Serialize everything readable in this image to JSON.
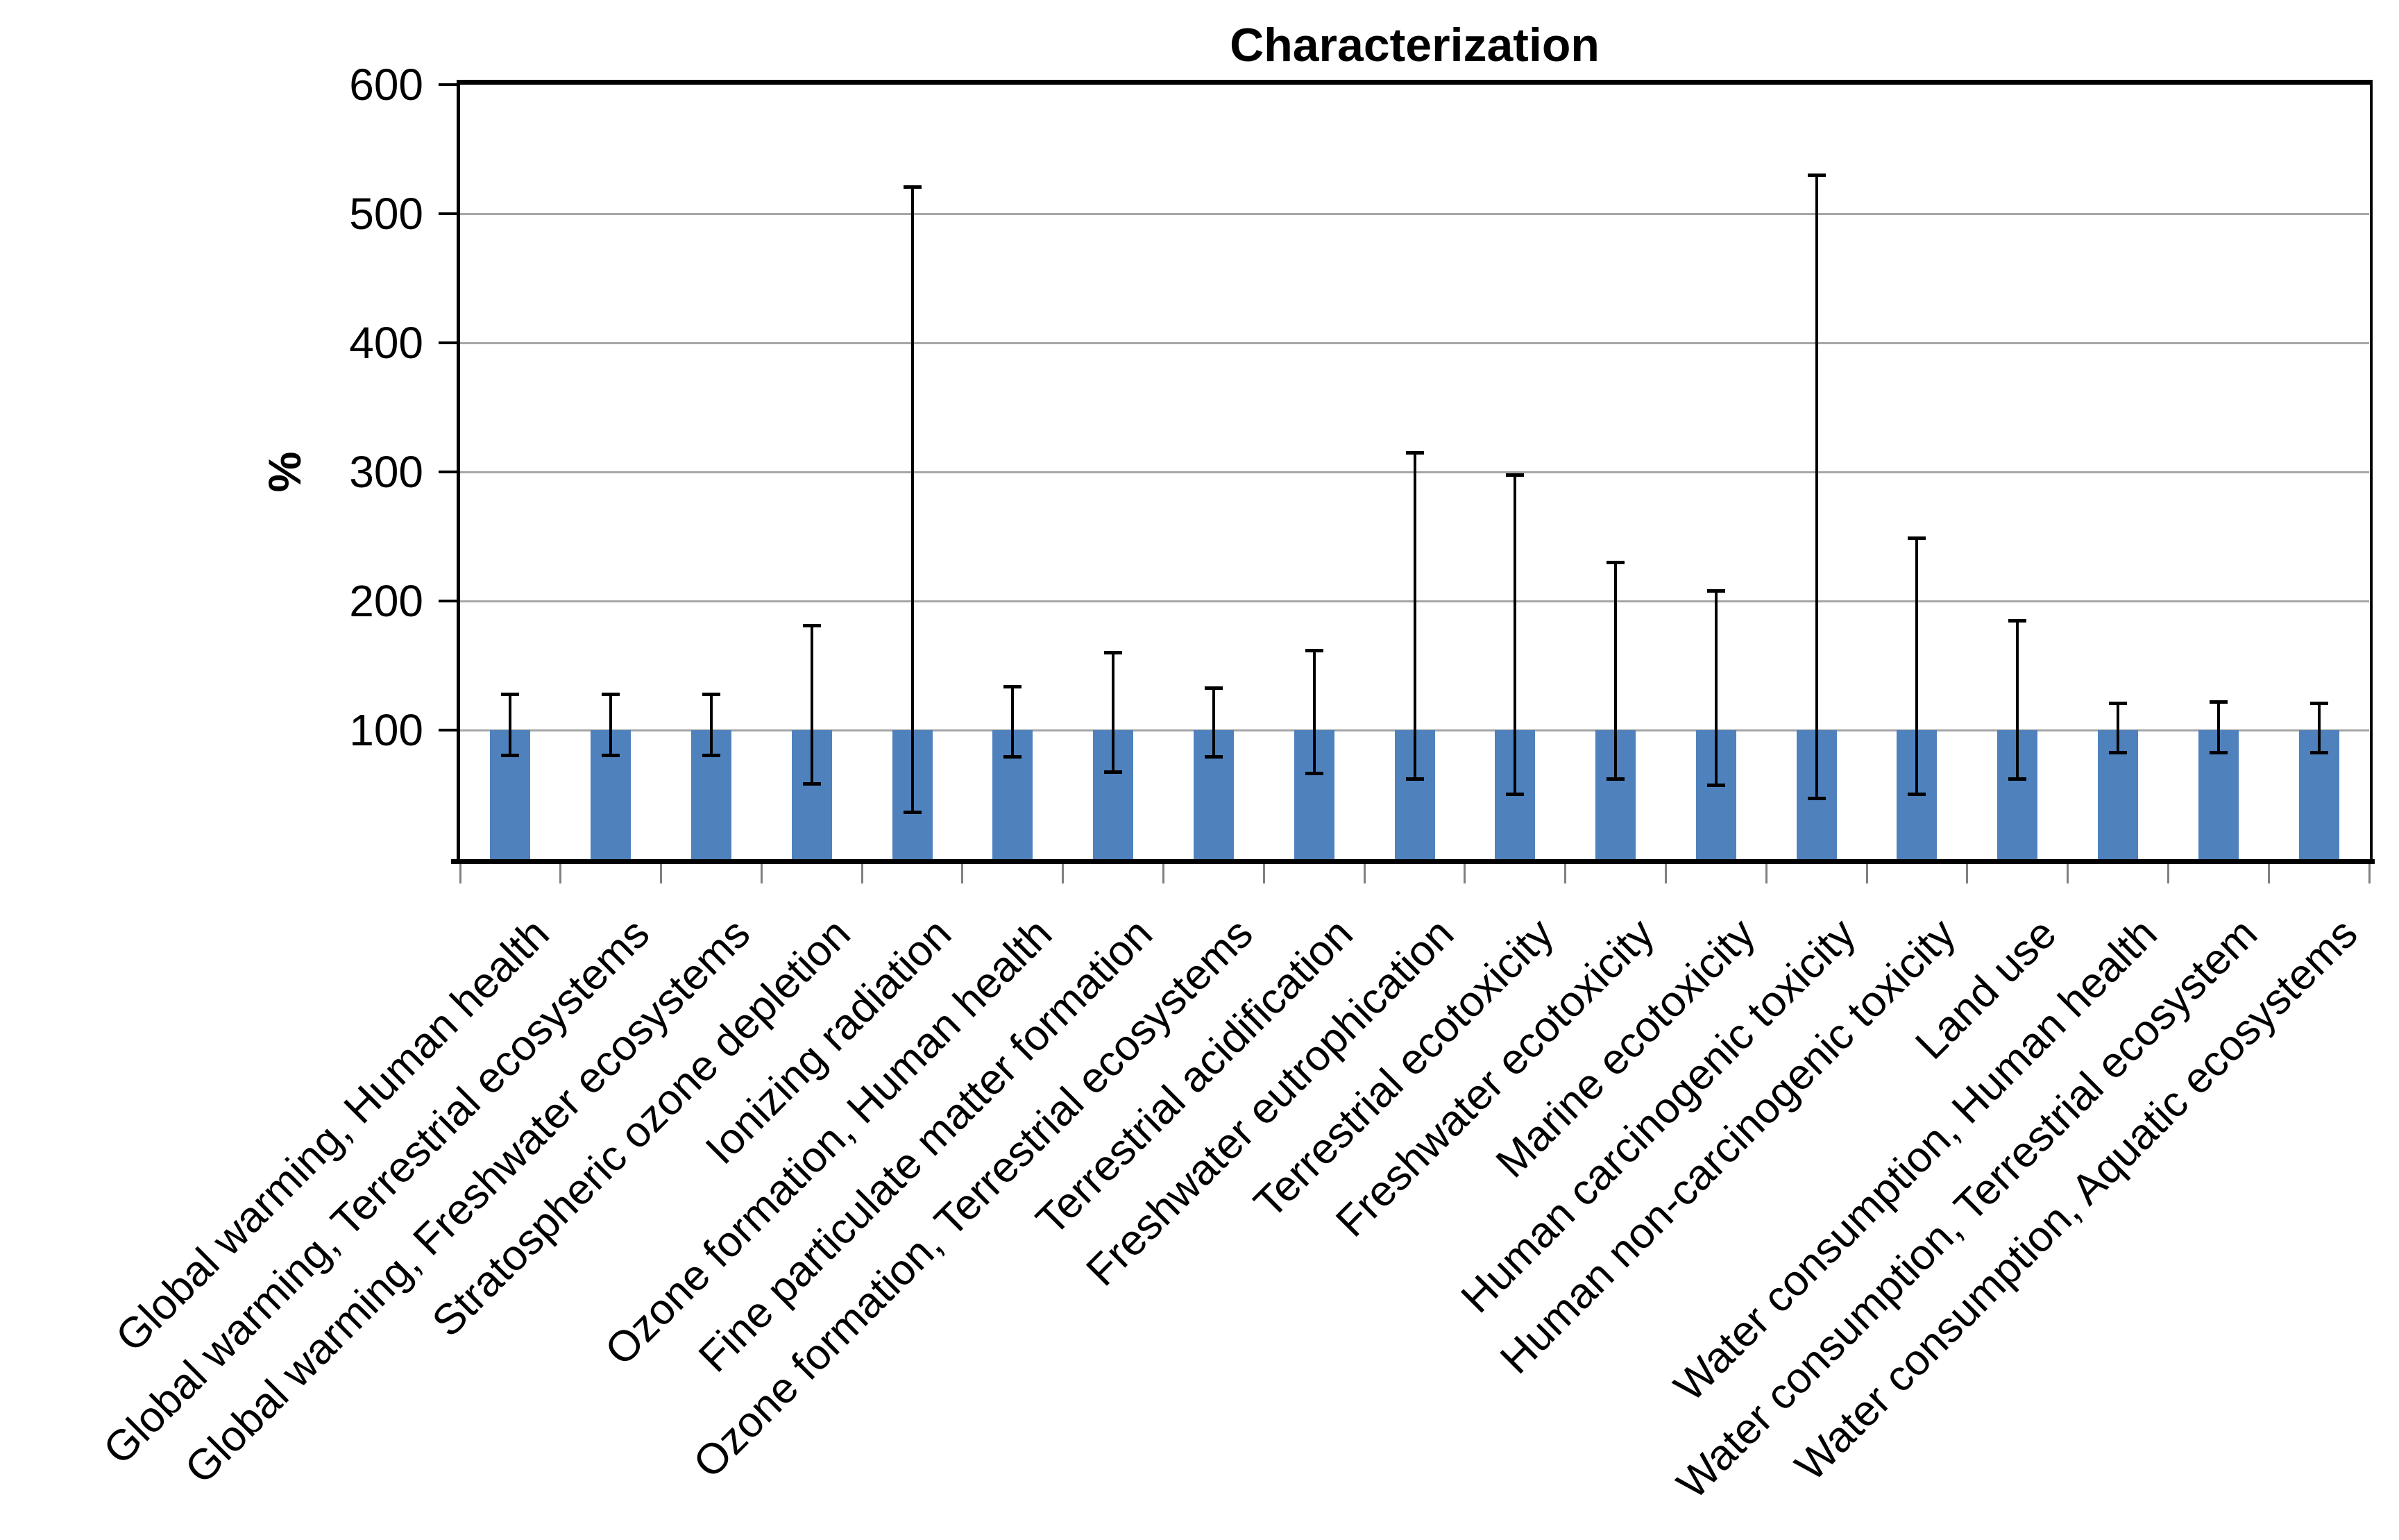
{
  "page": {
    "background": "#ffffff"
  },
  "chart_data": {
    "type": "bar",
    "title": "Characterization",
    "xlabel": "",
    "ylabel": "%",
    "ylim": [
      0,
      600
    ],
    "yticks": [
      100,
      200,
      300,
      400,
      500,
      600
    ],
    "grid": true,
    "legend": false,
    "bar_color": "#4f81bd",
    "gridline_color": "#a6a6a6",
    "axis_color": "#000000",
    "error_bar_color": "#000000",
    "categories": [
      "Global warming, Human health",
      "Global warming, Terrestrial ecosystems",
      "Global warming, Freshwater ecosystems",
      "Stratospheric ozone depletion",
      "Ionizing radiation",
      "Ozone formation, Human health",
      "Fine particulate matter formation",
      "Ozone formation, Terrestrial ecosystems",
      "Terrestrial acidification",
      "Freshwater eutrophication",
      "Terrestrial ecotoxicity",
      "Freshwater ecotoxicity",
      "Marine ecotoxicity",
      "Human carcinogenic toxicity",
      "Human non-carcinogenic toxicity",
      "Land use",
      "Water consumption, Human health",
      "Water consumption, Terrestrial ecosystem",
      "Water consumption, Aquatic ecosystems"
    ],
    "series": [
      {
        "name": "Characterization",
        "values": [
          100,
          100,
          100,
          100,
          100,
          100,
          100,
          100,
          100,
          100,
          100,
          100,
          100,
          100,
          100,
          100,
          100,
          100,
          100
        ]
      }
    ],
    "error_bars": [
      {
        "high": 128,
        "low": 80
      },
      {
        "high": 128,
        "low": 80
      },
      {
        "high": 128,
        "low": 80
      },
      {
        "high": 181,
        "low": 58
      },
      {
        "high": 521,
        "low": 36
      },
      {
        "high": 134,
        "low": 79
      },
      {
        "high": 160,
        "low": 67
      },
      {
        "high": 133,
        "low": 79
      },
      {
        "high": 162,
        "low": 66
      },
      {
        "high": 315,
        "low": 62
      },
      {
        "high": 298,
        "low": 50
      },
      {
        "high": 230,
        "low": 62
      },
      {
        "high": 208,
        "low": 57
      },
      {
        "high": 530,
        "low": 47
      },
      {
        "high": 249,
        "low": 50
      },
      {
        "high": 185,
        "low": 62
      },
      {
        "high": 121,
        "low": 82
      },
      {
        "high": 122,
        "low": 82
      },
      {
        "high": 121,
        "low": 82
      }
    ]
  }
}
